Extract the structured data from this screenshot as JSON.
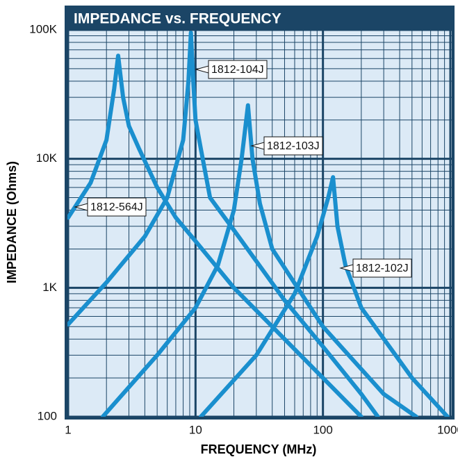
{
  "chart_data": {
    "type": "line",
    "title": "IMPEDANCE vs. FREQUENCY",
    "x_label": "FREQUENCY (MHz)",
    "y_label": "IMPEDANCE (Ohms)",
    "x_scale": "log",
    "y_scale": "log",
    "grid": true,
    "minor_grid": true,
    "xlim": [
      1,
      1000
    ],
    "xticks": [
      1,
      10,
      100,
      1000
    ],
    "ylim": [
      100,
      100000
    ],
    "yticks": [
      100,
      {
        "value": 1000,
        "label": "1K"
      },
      {
        "value": 10000,
        "label": "10K"
      },
      {
        "value": 100000,
        "label": "100K"
      }
    ],
    "series": [
      {
        "name": "1812-564J",
        "color": "#1a8fce",
        "x": [
          1,
          1.5,
          2,
          2.3,
          2.47,
          2.7,
          3,
          3.6,
          5,
          7,
          10,
          20,
          50,
          100,
          200
        ],
        "values": [
          3500,
          6500,
          14000,
          35000,
          63000,
          30000,
          18000,
          12000,
          6000,
          3500,
          2300,
          1000,
          400,
          200,
          100
        ]
      },
      {
        "name": "1812-104J",
        "color": "#1a8fce",
        "x": [
          1,
          2,
          4,
          6,
          8,
          8.8,
          9.2,
          9.6,
          10,
          11,
          13,
          20,
          50,
          100,
          200,
          270
        ],
        "values": [
          520,
          1100,
          2500,
          5000,
          14000,
          40000,
          95000,
          40000,
          20000,
          12000,
          5000,
          2800,
          800,
          350,
          150,
          100
        ]
      },
      {
        "name": "1812-103J",
        "color": "#1a8fce",
        "x": [
          1.87,
          5,
          10,
          15,
          20,
          23,
          25.8,
          28,
          32,
          40,
          100,
          300,
          540
        ],
        "values": [
          100,
          300,
          700,
          1500,
          4000,
          10000,
          26000,
          10000,
          4500,
          2000,
          500,
          150,
          100
        ]
      },
      {
        "name": "1812-102J",
        "color": "#1a8fce",
        "x": [
          11,
          30,
          60,
          90,
          110,
          120,
          130,
          150,
          200,
          500,
          950
        ],
        "values": [
          100,
          300,
          900,
          2500,
          5000,
          7200,
          3000,
          1500,
          700,
          200,
          100
        ]
      }
    ]
  }
}
